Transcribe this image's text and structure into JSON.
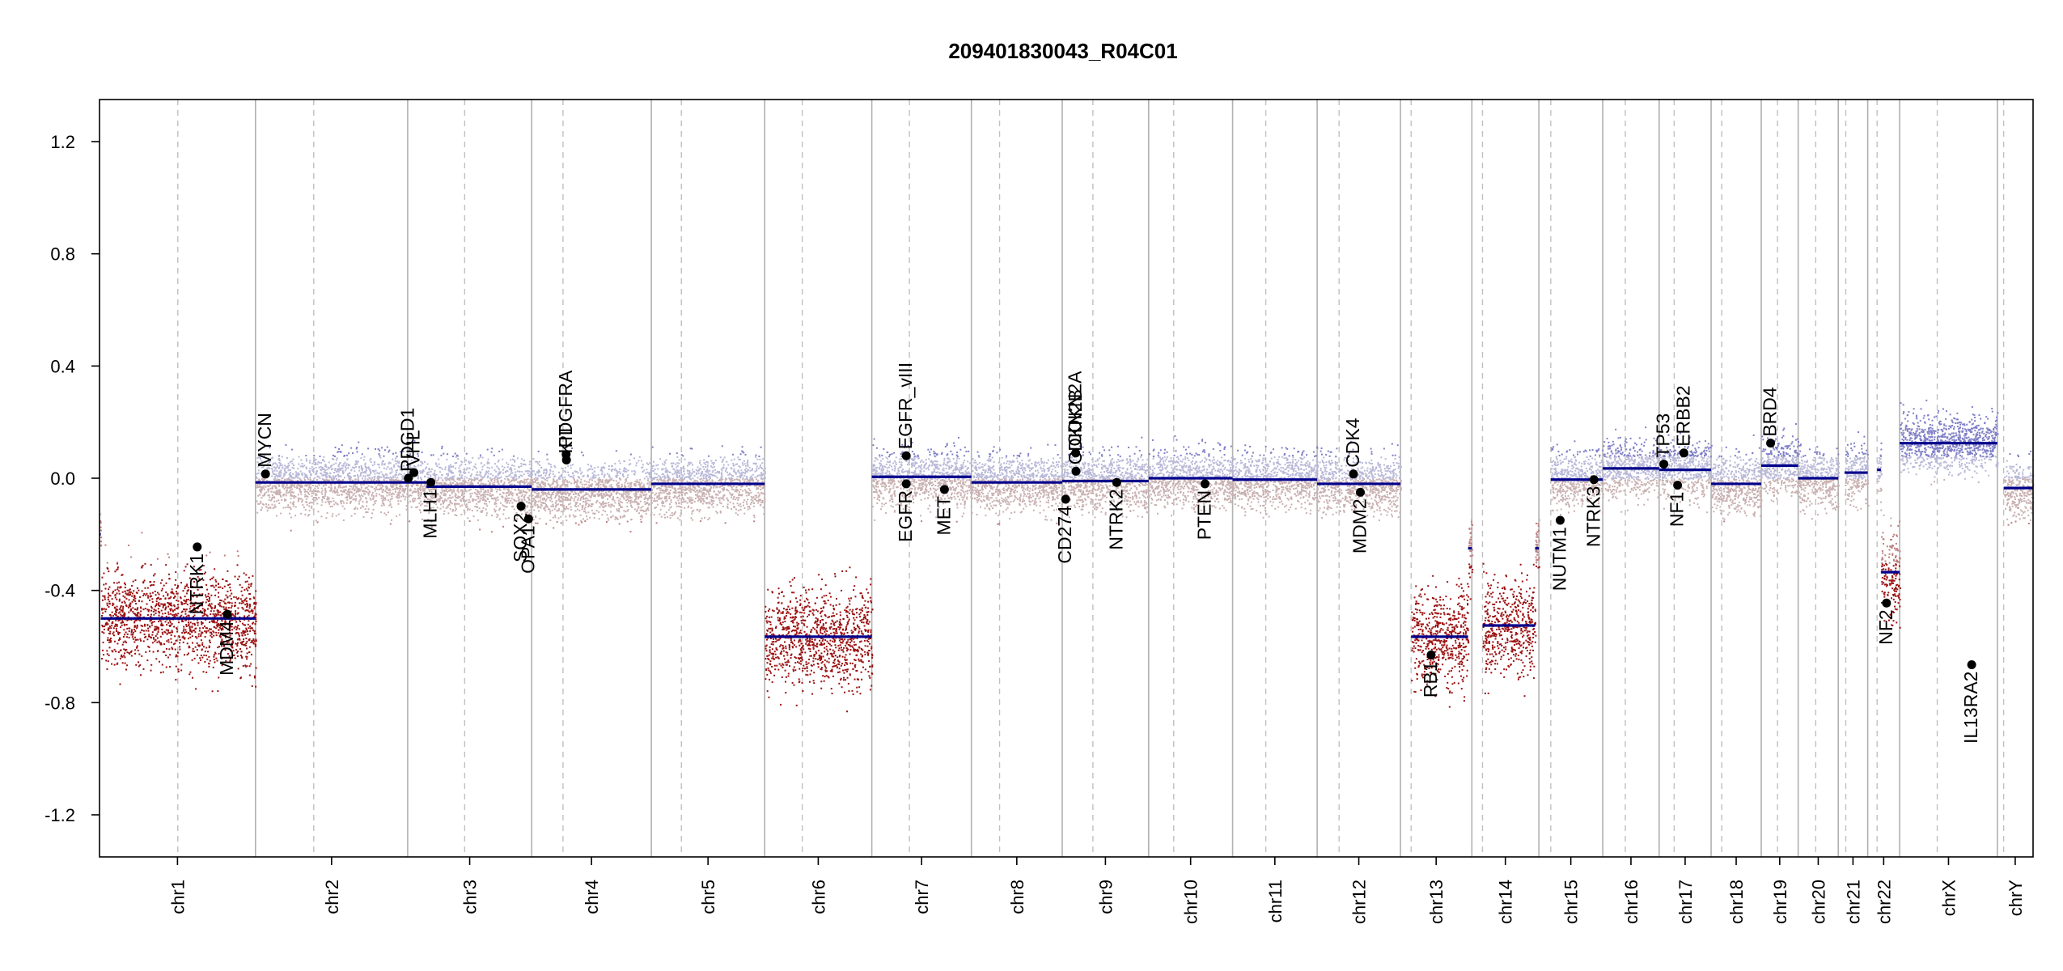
{
  "chart_data": {
    "type": "scatter",
    "title": "209401830043_R04C01",
    "ylim": [
      -1.35,
      1.35
    ],
    "yticks": [
      -1.2,
      -0.8,
      -0.4,
      0.0,
      0.4,
      0.8,
      1.2
    ],
    "ytick_labels": [
      "-1.2",
      "-0.8",
      "-0.4",
      "0.0",
      "0.4",
      "0.8",
      "1.2"
    ],
    "grid": "vertical chromosome boundaries (solid) and centromeres (dashed)",
    "colors": {
      "segment": "#00008b",
      "gain": "#8f8fcf",
      "loss": "#8b0000",
      "neutral": "#c8b4b4",
      "frame": "#000000"
    },
    "chromosomes": [
      {
        "name": "chr1",
        "length": 249,
        "centromere": 125,
        "segments": [
          {
            "start": 0,
            "end": 2,
            "value": -0.2
          },
          {
            "start": 2,
            "end": 249,
            "value": -0.5
          }
        ]
      },
      {
        "name": "chr2",
        "length": 243,
        "centromere": 93,
        "segments": [
          {
            "start": 0,
            "end": 243,
            "value": -0.015
          }
        ]
      },
      {
        "name": "chr3",
        "length": 198,
        "centromere": 91,
        "segments": [
          {
            "start": 0,
            "end": 30,
            "value": -0.015
          },
          {
            "start": 30,
            "end": 198,
            "value": -0.03
          }
        ]
      },
      {
        "name": "chr4",
        "length": 191,
        "centromere": 50,
        "segments": [
          {
            "start": 0,
            "end": 191,
            "value": -0.04
          }
        ]
      },
      {
        "name": "chr5",
        "length": 181,
        "centromere": 48,
        "segments": [
          {
            "start": 0,
            "end": 181,
            "value": -0.02
          }
        ]
      },
      {
        "name": "chr6",
        "length": 171,
        "centromere": 60,
        "segments": [
          {
            "start": 0,
            "end": 171,
            "value": -0.565
          }
        ]
      },
      {
        "name": "chr7",
        "length": 159,
        "centromere": 60,
        "segments": [
          {
            "start": 0,
            "end": 159,
            "value": 0.005
          }
        ]
      },
      {
        "name": "chr8",
        "length": 145,
        "centromere": 45,
        "segments": [
          {
            "start": 0,
            "end": 145,
            "value": -0.015
          }
        ]
      },
      {
        "name": "chr9",
        "length": 138,
        "centromere": 49,
        "segments": [
          {
            "start": 0,
            "end": 138,
            "value": -0.01
          }
        ]
      },
      {
        "name": "chr10",
        "length": 134,
        "centromere": 40,
        "segments": [
          {
            "start": 0,
            "end": 134,
            "value": 0.0
          }
        ]
      },
      {
        "name": "chr11",
        "length": 135,
        "centromere": 53,
        "segments": [
          {
            "start": 0,
            "end": 135,
            "value": -0.005
          }
        ]
      },
      {
        "name": "chr12",
        "length": 133,
        "centromere": 35,
        "segments": [
          {
            "start": 0,
            "end": 133,
            "value": -0.02
          }
        ]
      },
      {
        "name": "chr13",
        "length": 114,
        "centromere": 17,
        "segments": [
          {
            "start": 17,
            "end": 108,
            "value": -0.565
          },
          {
            "start": 108,
            "end": 114,
            "value": -0.25
          }
        ]
      },
      {
        "name": "chr14",
        "length": 107,
        "centromere": 17,
        "segments": [
          {
            "start": 17,
            "end": 101,
            "value": -0.525
          },
          {
            "start": 101,
            "end": 107,
            "value": -0.25
          }
        ]
      },
      {
        "name": "chr15",
        "length": 102,
        "centromere": 19,
        "segments": [
          {
            "start": 19,
            "end": 102,
            "value": -0.005
          }
        ]
      },
      {
        "name": "chr16",
        "length": 90,
        "centromere": 36,
        "segments": [
          {
            "start": 0,
            "end": 90,
            "value": 0.035
          }
        ]
      },
      {
        "name": "chr17",
        "length": 83,
        "centromere": 24,
        "segments": [
          {
            "start": 0,
            "end": 83,
            "value": 0.03
          }
        ]
      },
      {
        "name": "chr18",
        "length": 80,
        "centromere": 17,
        "segments": [
          {
            "start": 0,
            "end": 80,
            "value": -0.02
          }
        ]
      },
      {
        "name": "chr19",
        "length": 59,
        "centromere": 26,
        "segments": [
          {
            "start": 0,
            "end": 59,
            "value": 0.045
          }
        ]
      },
      {
        "name": "chr20",
        "length": 64,
        "centromere": 28,
        "segments": [
          {
            "start": 0,
            "end": 64,
            "value": 0.0
          }
        ]
      },
      {
        "name": "chr21",
        "length": 47,
        "centromere": 12,
        "segments": [
          {
            "start": 10,
            "end": 47,
            "value": 0.02
          }
        ]
      },
      {
        "name": "chr22",
        "length": 51,
        "centromere": 15,
        "segments": [
          {
            "start": 15,
            "end": 21,
            "value": 0.03
          },
          {
            "start": 21,
            "end": 51,
            "value": -0.335
          }
        ]
      },
      {
        "name": "chrX",
        "length": 156,
        "centromere": 60,
        "segments": [
          {
            "start": 0,
            "end": 156,
            "value": 0.125
          }
        ]
      },
      {
        "name": "chrY",
        "length": 57,
        "centromere": 10,
        "segments": [
          {
            "start": 10,
            "end": 57,
            "value": -0.035
          }
        ]
      }
    ],
    "genes": [
      {
        "name": "NTRK1",
        "chr": "chr1",
        "pos": 156,
        "value": -0.245,
        "label_side": "below"
      },
      {
        "name": "MDM4",
        "chr": "chr1",
        "pos": 204,
        "value": -0.485,
        "label_side": "below"
      },
      {
        "name": "MYCN",
        "chr": "chr2",
        "pos": 16,
        "value": 0.015,
        "label_side": "above"
      },
      {
        "name": "PDGD1",
        "chr": "chr3",
        "pos": 1,
        "value": 0.0,
        "label_side": "above"
      },
      {
        "name": "VHL",
        "chr": "chr3",
        "pos": 10,
        "value": 0.02,
        "label_side": "above"
      },
      {
        "name": "MLH1",
        "chr": "chr3",
        "pos": 37,
        "value": -0.015,
        "label_side": "below"
      },
      {
        "name": "SOX2",
        "chr": "chr3",
        "pos": 181,
        "value": -0.1,
        "label_side": "below"
      },
      {
        "name": "OPA1",
        "chr": "chr3",
        "pos": 193,
        "value": -0.145,
        "label_side": "below"
      },
      {
        "name": "PDGFRA",
        "chr": "chr4",
        "pos": 55,
        "value": 0.085,
        "label_side": "above"
      },
      {
        "name": "KIT",
        "chr": "chr4",
        "pos": 55.5,
        "value": 0.065,
        "label_side": "above"
      },
      {
        "name": "EGFR_vIII",
        "chr": "chr7",
        "pos": 55,
        "value": 0.08,
        "label_side": "above"
      },
      {
        "name": "EGFR",
        "chr": "chr7",
        "pos": 55,
        "value": -0.02,
        "label_side": "below"
      },
      {
        "name": "MET",
        "chr": "chr7",
        "pos": 116,
        "value": -0.04,
        "label_side": "below"
      },
      {
        "name": "CD274",
        "chr": "chr9",
        "pos": 5.5,
        "value": -0.075,
        "label_side": "below"
      },
      {
        "name": "CDKN2A",
        "chr": "chr9",
        "pos": 21.5,
        "value": 0.09,
        "label_side": "above"
      },
      {
        "name": "CDKN2B",
        "chr": "chr9",
        "pos": 22,
        "value": 0.025,
        "label_side": "above"
      },
      {
        "name": "NTRK2",
        "chr": "chr9",
        "pos": 87,
        "value": -0.015,
        "label_side": "below"
      },
      {
        "name": "PTEN",
        "chr": "chr10",
        "pos": 90,
        "value": -0.02,
        "label_side": "below"
      },
      {
        "name": "CDK4",
        "chr": "chr12",
        "pos": 58,
        "value": 0.015,
        "label_side": "above"
      },
      {
        "name": "MDM2",
        "chr": "chr12",
        "pos": 69,
        "value": -0.05,
        "label_side": "below"
      },
      {
        "name": "RB1",
        "chr": "chr13",
        "pos": 49,
        "value": -0.63,
        "label_side": "below"
      },
      {
        "name": "NUTM1",
        "chr": "chr15",
        "pos": 34,
        "value": -0.15,
        "label_side": "below"
      },
      {
        "name": "NTRK3",
        "chr": "chr15",
        "pos": 88,
        "value": -0.005,
        "label_side": "below"
      },
      {
        "name": "TP53",
        "chr": "chr17",
        "pos": 7.5,
        "value": 0.05,
        "label_side": "above"
      },
      {
        "name": "NF1",
        "chr": "chr17",
        "pos": 29.5,
        "value": -0.025,
        "label_side": "below"
      },
      {
        "name": "ERBB2",
        "chr": "chr17",
        "pos": 39.5,
        "value": 0.09,
        "label_side": "above"
      },
      {
        "name": "BRD4",
        "chr": "chr19",
        "pos": 15,
        "value": 0.125,
        "label_side": "above"
      },
      {
        "name": "NF2",
        "chr": "chr22",
        "pos": 30,
        "value": -0.445,
        "label_side": "below"
      },
      {
        "name": "IL13RA2",
        "chr": "chrX",
        "pos": 115,
        "value": -0.665,
        "label_side": "below"
      }
    ]
  }
}
